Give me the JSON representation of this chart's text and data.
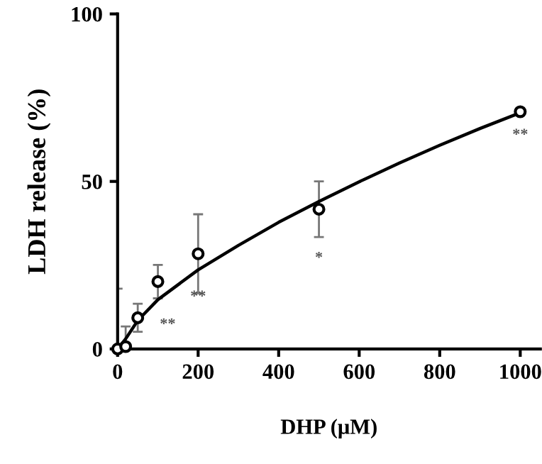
{
  "chart_data": {
    "type": "scatter",
    "xlabel": "DHP (μM)",
    "ylabel": "LDH release (%)",
    "xlim": [
      0,
      1050
    ],
    "ylim": [
      0,
      100
    ],
    "xticks": [
      0,
      200,
      400,
      600,
      800,
      1000
    ],
    "yticks": [
      0,
      50,
      100
    ],
    "grid": false,
    "marker": "circle",
    "series": [
      {
        "color": "#000000",
        "x": [
          0,
          20,
          50,
          100,
          200,
          500,
          1000
        ],
        "values": [
          0,
          0.7,
          9.3,
          20.1,
          28.4,
          41.7,
          70.8
        ],
        "errors": [
          18,
          6,
          4.2,
          5,
          11.8,
          8.3,
          null
        ]
      },
      {
        "type": "line",
        "color": "#000000",
        "marker": "none",
        "line_style": "solid",
        "x": [
          0,
          20,
          50,
          100,
          200,
          300,
          400,
          500,
          600,
          700,
          800,
          900,
          1000
        ],
        "values": [
          0,
          3,
          8.5,
          14.7,
          23.6,
          30.9,
          37.8,
          44,
          49.9,
          55.5,
          60.8,
          65.8,
          70.5
        ]
      }
    ],
    "annotations": [
      {
        "text": "**",
        "x": 100,
        "y": 20.1
      },
      {
        "text": "**",
        "x": 200,
        "y": 28.4
      },
      {
        "text": "*",
        "x": 500,
        "y": 41.7
      },
      {
        "text": "**",
        "x": 1000,
        "y": 70.8
      }
    ]
  }
}
